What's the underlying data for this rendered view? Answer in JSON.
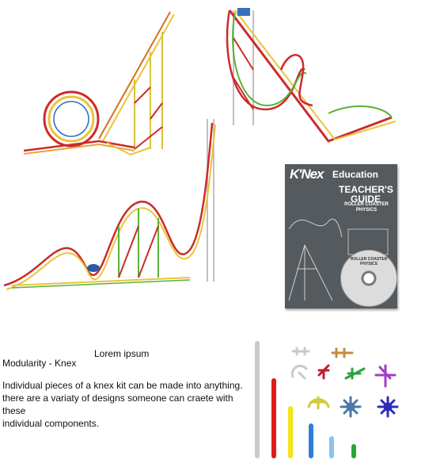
{
  "booklet": {
    "brand": "K'Nex",
    "subtitle": "Education",
    "title_line1": "TEACHER'S",
    "title_line2": "GUIDE",
    "topic": "ROLLER COASTER PHYSICS",
    "cd_label": "ROLLER COASTER PHYSICS"
  },
  "captions": {
    "placeholder": "Lorem ipsum",
    "heading": "Modularity - Knex",
    "body_line1": "Individual pieces of a knex kit can be made into anything.",
    "body_line2": "there are a variaty of designs someone can craete with these",
    "body_line3": "individual components."
  },
  "parts_colors": {
    "grey": "#c9c9c9",
    "red": "#e01b1b",
    "yellow": "#f1e415",
    "blue": "#2a7fd6",
    "lightblue": "#8cc3ee",
    "green": "#2aa43a",
    "orange": "#c48b3e",
    "purple": "#a33bc6",
    "navy": "#2b2fb8",
    "steelblue": "#4a78a8",
    "olive": "#d3c93a"
  },
  "icons": [
    "loop-coaster-image",
    "tower-coaster-image",
    "hill-coaster-image",
    "knex-parts-image"
  ]
}
